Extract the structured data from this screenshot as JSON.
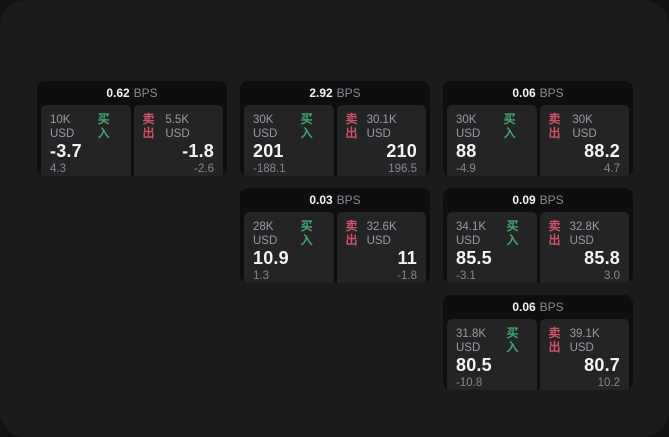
{
  "labels": {
    "bps": "BPS",
    "buy": "买入",
    "sell": "卖出"
  },
  "colors": {
    "page_bg": "#121214",
    "surface_bg": "#1b1b1d",
    "card_bg": "#0e0e10",
    "panel_bg": "#242427",
    "buy_green": "#43a770",
    "sell_red": "#cd5465",
    "price_white": "#f4f4f5",
    "muted_gray": "#87878b"
  },
  "cards": [
    {
      "bps": "0.62",
      "buy": {
        "amount": "10K USD",
        "price": "-3.7",
        "delta": "4.3"
      },
      "sell": {
        "amount": "5.5K USD",
        "price": "-1.8",
        "delta": "-2.6"
      }
    },
    {
      "bps": "2.92",
      "buy": {
        "amount": "30K USD",
        "price": "201",
        "delta": "-188.1"
      },
      "sell": {
        "amount": "30.1K USD",
        "price": "210",
        "delta": "196.5"
      }
    },
    {
      "bps": "0.06",
      "buy": {
        "amount": "30K USD",
        "price": "88",
        "delta": "-4.9"
      },
      "sell": {
        "amount": "30K USD",
        "price": "88.2",
        "delta": "4.7"
      }
    },
    {
      "bps": "0.03",
      "buy": {
        "amount": "28K USD",
        "price": "10.9",
        "delta": "1.3"
      },
      "sell": {
        "amount": "32.6K USD",
        "price": "11",
        "delta": "-1.8"
      }
    },
    {
      "bps": "0.09",
      "buy": {
        "amount": "34.1K USD",
        "price": "85.5",
        "delta": "-3.1"
      },
      "sell": {
        "amount": "32.8K USD",
        "price": "85.8",
        "delta": "3.0"
      }
    },
    {
      "bps": "0.06",
      "buy": {
        "amount": "31.8K USD",
        "price": "80.5",
        "delta": "-10.8"
      },
      "sell": {
        "amount": "39.1K USD",
        "price": "80.7",
        "delta": "10.2"
      }
    }
  ]
}
